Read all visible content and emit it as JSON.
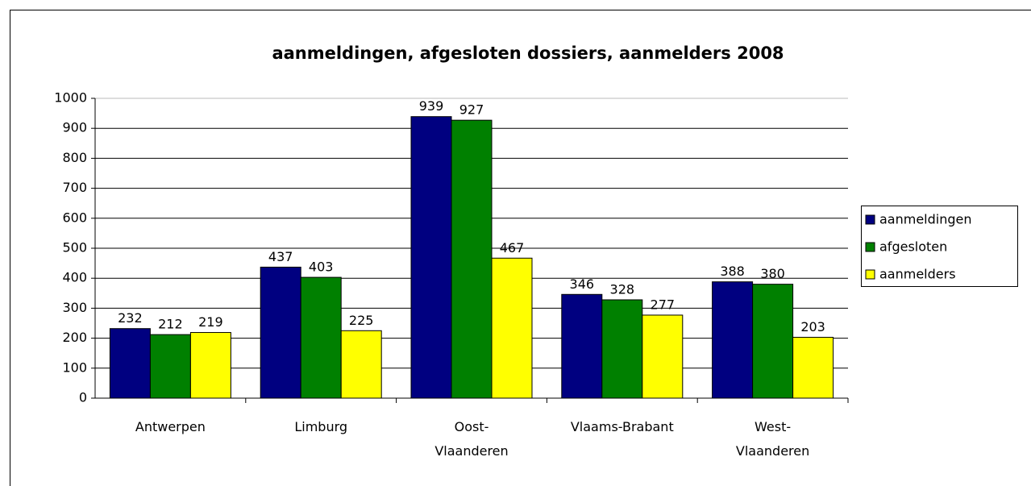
{
  "chart_data": {
    "type": "bar",
    "title": "aanmeldingen, afgesloten dossiers, aanmelders  2008",
    "categories": [
      "Antwerpen",
      "Limburg",
      "Oost-\nVlaanderen",
      "Vlaams-Brabant",
      "West-\nVlaanderen"
    ],
    "series": [
      {
        "name": "aanmeldingen",
        "color": "#000080",
        "values": [
          232,
          437,
          939,
          346,
          388
        ]
      },
      {
        "name": "afgesloten",
        "color": "#008000",
        "values": [
          212,
          403,
          927,
          328,
          380
        ]
      },
      {
        "name": "aanmelders",
        "color": "#ffff00",
        "values": [
          219,
          225,
          467,
          277,
          203
        ]
      }
    ],
    "ylim": [
      0,
      1000
    ],
    "yticks": [
      0,
      100,
      200,
      300,
      400,
      500,
      600,
      700,
      800,
      900,
      1000
    ],
    "grid": true,
    "legend": "right"
  }
}
